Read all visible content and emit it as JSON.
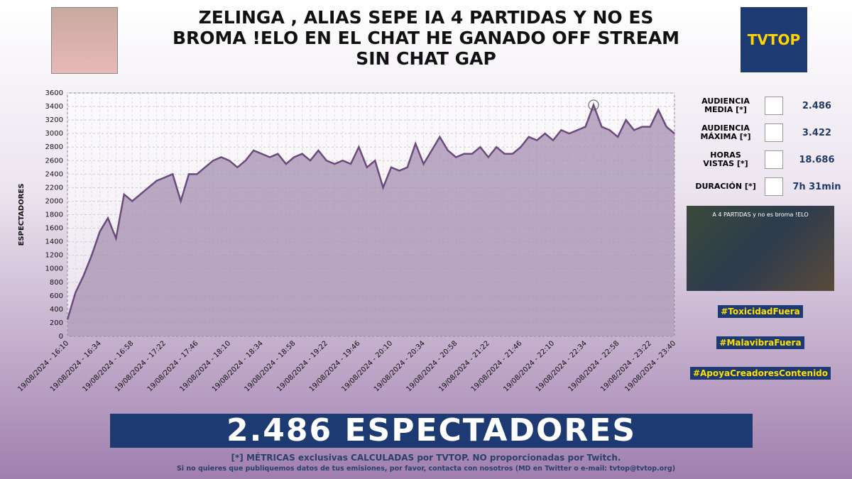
{
  "header": {
    "title": "ZELINGA , ALIAS SEPE IA 4 PARTIDAS Y NO ES BROMA !ELO EN EL CHAT HE GANADO OFF STREAM SIN CHAT GAP",
    "logo": "TVTOP"
  },
  "chart_data": {
    "type": "line",
    "y_label": "ESPECTADORES",
    "color": "#6b4a7e",
    "fill": "#a58fb0",
    "categories": [
      "19/08/2024 - 16:10",
      null,
      null,
      null,
      "19/08/2024 - 16:34",
      null,
      null,
      null,
      "19/08/2024 - 16:58",
      null,
      null,
      null,
      "19/08/2024 - 17:22",
      null,
      null,
      null,
      "19/08/2024 - 17:46",
      null,
      null,
      null,
      "19/08/2024 - 18:10",
      null,
      null,
      null,
      "19/08/2024 - 18:34",
      null,
      null,
      null,
      "19/08/2024 - 18:58",
      null,
      null,
      null,
      "19/08/2024 - 19:22",
      null,
      null,
      null,
      "19/08/2024 - 19:46",
      null,
      null,
      null,
      "19/08/2024 - 20:10",
      null,
      null,
      null,
      "19/08/2024 - 20:34",
      null,
      null,
      null,
      "19/08/2024 - 20:58",
      null,
      null,
      null,
      "19/08/2024 - 21:22",
      null,
      null,
      null,
      "19/08/2024 - 21:46",
      null,
      null,
      null,
      "19/08/2024 - 22:10",
      null,
      null,
      null,
      "19/08/2024 - 22:34",
      null,
      null,
      null,
      "19/08/2024 - 22:58",
      null,
      null,
      null,
      "19/08/2024 - 23:22",
      null,
      null,
      "19/08/2024 - 23:40"
    ],
    "values": [
      250,
      650,
      900,
      1200,
      1550,
      1750,
      1450,
      2100,
      2000,
      2100,
      2200,
      2300,
      2350,
      2400,
      2000,
      2400,
      2400,
      2500,
      2600,
      2650,
      2600,
      2500,
      2600,
      2750,
      2700,
      2650,
      2700,
      2550,
      2650,
      2700,
      2600,
      2750,
      2600,
      2550,
      2600,
      2550,
      2800,
      2500,
      2600,
      2200,
      2500,
      2450,
      2500,
      2850,
      2550,
      2750,
      2950,
      2750,
      2650,
      2700,
      2700,
      2800,
      2650,
      2800,
      2700,
      2700,
      2800,
      2950,
      2900,
      3000,
      2900,
      3050,
      3000,
      3050,
      3100,
      3422,
      3100,
      3050,
      2950,
      3200,
      3050,
      3100,
      3100,
      3350,
      3100,
      3000
    ],
    "ylim": [
      0,
      3600
    ],
    "yticks": [
      0,
      200,
      400,
      600,
      800,
      1000,
      1200,
      1400,
      1600,
      1800,
      2000,
      2200,
      2400,
      2600,
      2800,
      3000,
      3200,
      3400,
      3600
    ],
    "grid": true
  },
  "stats": [
    {
      "label": [
        "AUDIENCIA",
        "MEDIA [*]"
      ],
      "value": "2.486"
    },
    {
      "label": [
        "AUDIENCIA",
        "MÁXIMA [*]"
      ],
      "value": "3.422"
    },
    {
      "label": [
        "HORAS",
        "VISTAS [*]"
      ],
      "value": "18.686"
    },
    {
      "label": [
        "DURACIÓN [*]"
      ],
      "value": "7h 31min"
    }
  ],
  "thumbnail": {
    "caption": "A 4 PARTIDAS y no es broma  !ELO"
  },
  "hashtags": [
    "#ToxicidadFuera",
    "#MalavibraFuera",
    "#ApoyaCreadoresContenido"
  ],
  "banner": "2.486 ESPECTADORES",
  "footer": {
    "note": "[*] MÉTRICAS exclusivas CALCULADAS por TVTOP. NO proporcionadas por Twitch.",
    "contact": "Si no quieres que publiquemos datos de tus emisiones, por favor, contacta con nosotros (MD en Twitter o e-mail: tvtop@tvtop.org)"
  }
}
